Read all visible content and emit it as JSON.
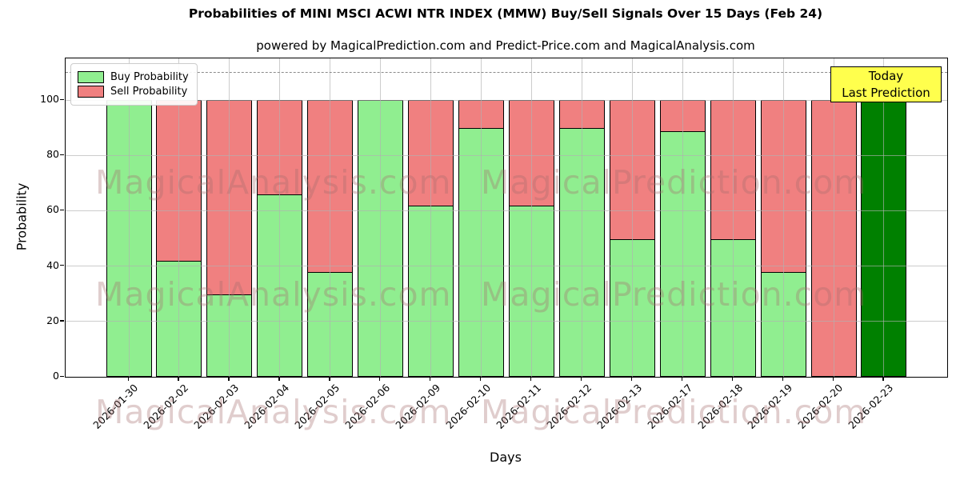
{
  "header": {
    "title": "Probabilities of MINI MSCI ACWI NTR INDEX (MMW) Buy/Sell Signals Over 15 Days (Feb 24)",
    "subtitle": "powered by MagicalPrediction.com and Predict-Price.com and MagicalAnalysis.com"
  },
  "watermarks": {
    "left_text": "MagicalAnalysis.com",
    "right_text": "MagicalPrediction.com"
  },
  "annotation": {
    "line1": "Today",
    "line2": "Last Prediction",
    "bg_color": "#ffff4d"
  },
  "chart_data": {
    "type": "bar",
    "stacked": true,
    "title": "Probabilities of MINI MSCI ACWI NTR INDEX (MMW) Buy/Sell Signals Over 15 Days (Feb 24)",
    "xlabel": "Days",
    "ylabel": "Probability",
    "ylim": [
      0,
      115
    ],
    "yticks": [
      0,
      20,
      40,
      60,
      80,
      100
    ],
    "dashed_line_y": 110,
    "grid": true,
    "legend_position": "upper left",
    "categories": [
      "2026-01-30",
      "2026-02-02",
      "2026-02-03",
      "2026-02-04",
      "2026-02-05",
      "2026-02-06",
      "2026-02-09",
      "2026-02-10",
      "2026-02-11",
      "2026-02-12",
      "2026-02-13",
      "2026-02-17",
      "2026-02-18",
      "2026-02-19",
      "2026-02-20",
      "2026-02-23"
    ],
    "series": [
      {
        "name": "Buy Probability",
        "color": "#90EE90",
        "values": [
          100,
          42,
          30,
          66,
          38,
          100,
          62,
          90,
          62,
          90,
          50,
          89,
          50,
          38,
          0,
          100
        ]
      },
      {
        "name": "Sell Probability",
        "color": "#F08080",
        "values": [
          0,
          58,
          70,
          34,
          62,
          0,
          38,
          10,
          38,
          10,
          50,
          11,
          50,
          62,
          100,
          0
        ]
      }
    ],
    "today_bar": {
      "index": 15,
      "category": "2026-02-23",
      "color": "#008000",
      "note": "Today / Last Prediction"
    },
    "bar_edge_color": "#000000"
  }
}
